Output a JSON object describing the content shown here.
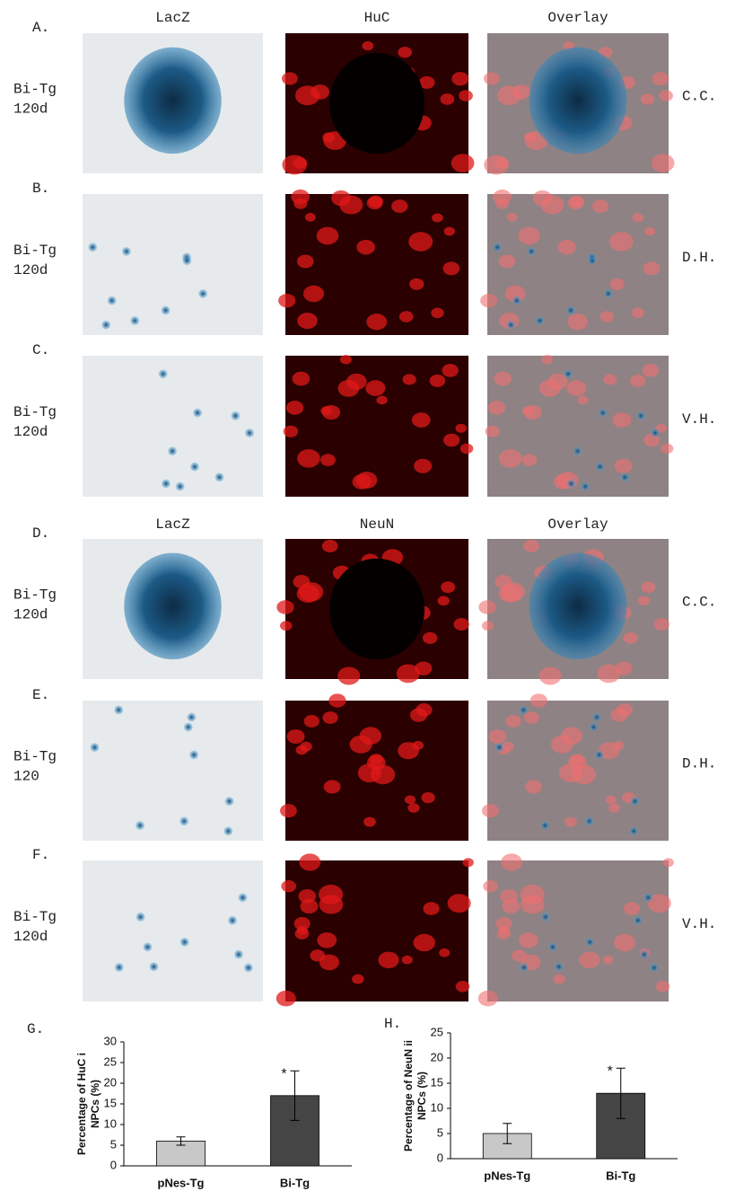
{
  "panels": {
    "section1": {
      "headers": [
        "LacZ",
        "HuC",
        "Overlay"
      ],
      "rows": [
        {
          "letter": "A.",
          "label": [
            "Bi-Tg",
            "120d"
          ],
          "region": "C.C."
        },
        {
          "letter": "B.",
          "label": [
            "Bi-Tg",
            "120d"
          ],
          "region": "D.H."
        },
        {
          "letter": "C.",
          "label": [
            "Bi-Tg",
            "120d"
          ],
          "region": "V.H."
        }
      ]
    },
    "section2": {
      "headers": [
        "LacZ",
        "NeuN",
        "Overlay"
      ],
      "rows": [
        {
          "letter": "D.",
          "label": [
            "Bi-Tg",
            "120d"
          ],
          "region": "C.C."
        },
        {
          "letter": "E.",
          "label": [
            "Bi-Tg",
            "120"
          ],
          "region": "D.H."
        },
        {
          "letter": "F.",
          "label": [
            "Bi-Tg",
            "120d"
          ],
          "region": "V.H."
        }
      ]
    }
  },
  "chart_data": [
    {
      "type": "bar",
      "panel_label": "G.",
      "y_label": [
        "Percentage of HuC i",
        "NPCs (%)"
      ],
      "categories": [
        "pNes-Tg",
        "Bi-Tg"
      ],
      "values": [
        6,
        17
      ],
      "errors": [
        1,
        6
      ],
      "colors": [
        "#c8c8c8",
        "#454545"
      ],
      "markers": [
        null,
        "*"
      ],
      "ylim": [
        0,
        30
      ],
      "yticks": [
        0,
        5,
        10,
        15,
        20,
        25,
        30
      ]
    },
    {
      "type": "bar",
      "panel_label": "H.",
      "y_label": [
        "Percentage of NeuN ii",
        "NPCs (%)"
      ],
      "categories": [
        "pNes-Tg",
        "Bi-Tg"
      ],
      "values": [
        5,
        13
      ],
      "errors": [
        2,
        5
      ],
      "colors": [
        "#c8c8c8",
        "#454545"
      ],
      "markers": [
        null,
        "*"
      ],
      "ylim": [
        0,
        25
      ],
      "yticks": [
        0,
        5,
        10,
        15,
        20,
        25
      ]
    }
  ]
}
